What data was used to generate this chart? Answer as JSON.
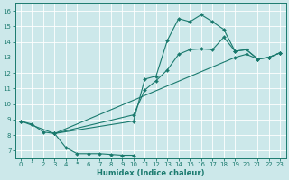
{
  "xlabel": "Humidex (Indice chaleur)",
  "xlim": [
    -0.5,
    23.5
  ],
  "ylim": [
    6.5,
    16.5
  ],
  "xticks": [
    0,
    1,
    2,
    3,
    4,
    5,
    6,
    7,
    8,
    9,
    10,
    11,
    12,
    13,
    14,
    15,
    16,
    17,
    18,
    19,
    20,
    21,
    22,
    23
  ],
  "yticks": [
    7,
    8,
    9,
    10,
    11,
    12,
    13,
    14,
    15,
    16
  ],
  "line_color": "#1a7a6e",
  "bg_color": "#cce8ea",
  "grid_color": "#ffffff",
  "line1_x": [
    0,
    1,
    2,
    3,
    4,
    5,
    6,
    7,
    8,
    9,
    10
  ],
  "line1_y": [
    8.9,
    8.7,
    8.2,
    8.1,
    7.2,
    6.8,
    6.8,
    6.8,
    6.75,
    6.7,
    6.7
  ],
  "line2_x": [
    0,
    3,
    10,
    11,
    12,
    13,
    14,
    15,
    16,
    17,
    18,
    19,
    20,
    21,
    22,
    23
  ],
  "line2_y": [
    8.9,
    8.1,
    8.9,
    11.6,
    11.8,
    14.1,
    15.5,
    15.3,
    15.75,
    15.3,
    14.8,
    13.4,
    13.5,
    12.9,
    13.0,
    13.3
  ],
  "line3_x": [
    3,
    19,
    20,
    21,
    22,
    23
  ],
  "line3_y": [
    8.1,
    13.0,
    13.2,
    12.9,
    13.0,
    13.3
  ],
  "line4_x": [
    3,
    10,
    11,
    12,
    13,
    14,
    15,
    16,
    17,
    18,
    19,
    20,
    21,
    22,
    23
  ],
  "line4_y": [
    8.1,
    9.3,
    10.9,
    11.5,
    12.2,
    13.2,
    13.5,
    13.55,
    13.5,
    14.3,
    13.4,
    13.5,
    12.9,
    13.0,
    13.3
  ],
  "tick_fontsize": 5.0,
  "xlabel_fontsize": 6.0
}
